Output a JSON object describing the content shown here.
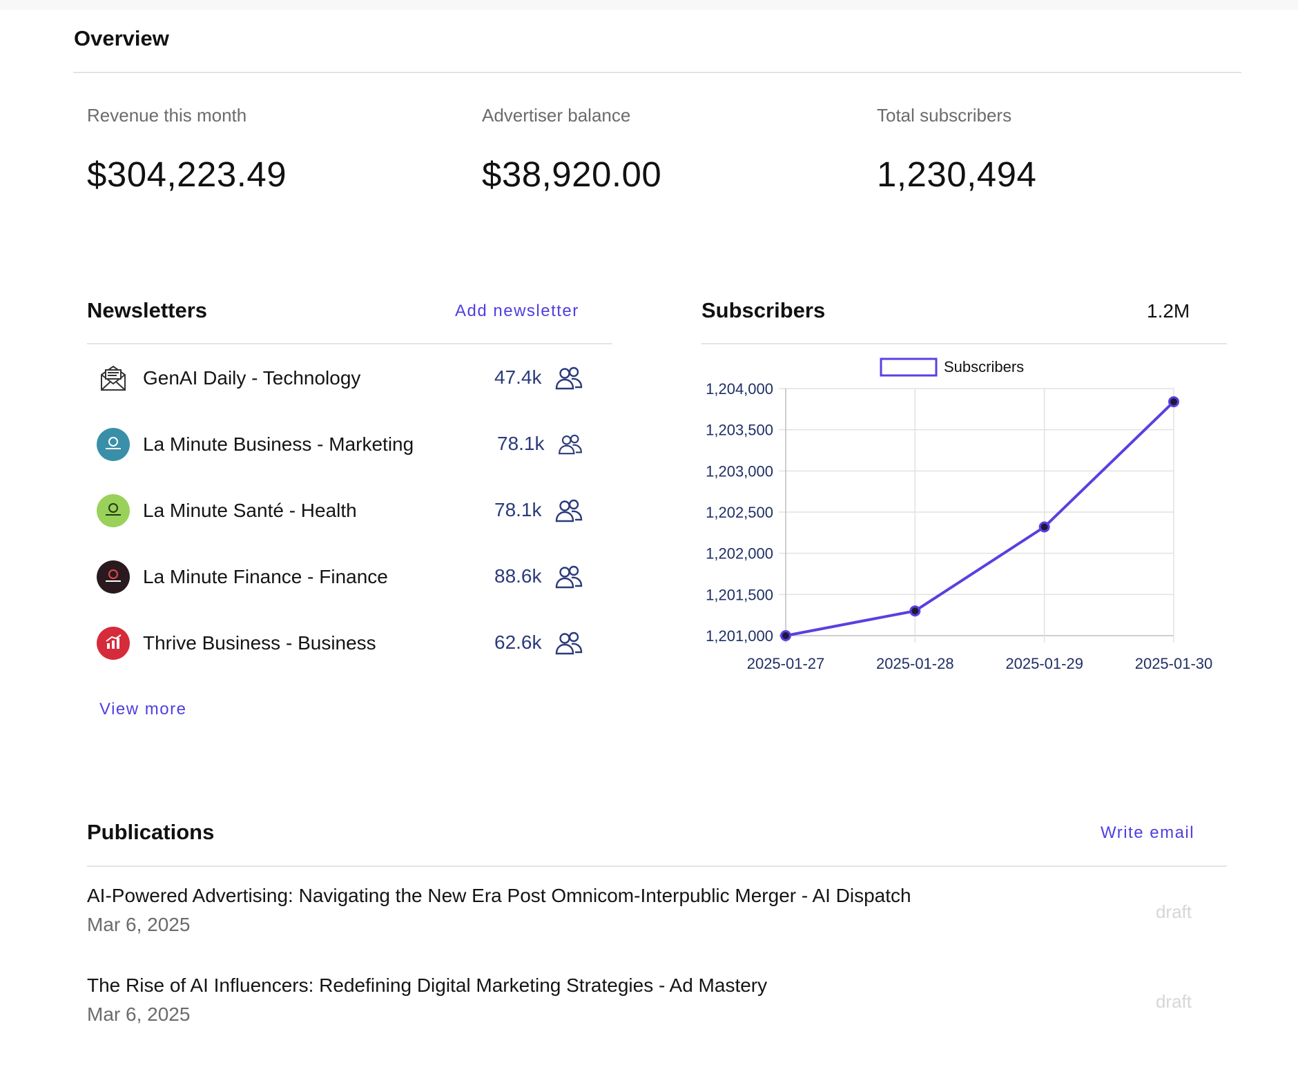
{
  "overview": {
    "title": "Overview",
    "stats": [
      {
        "label": "Revenue this month",
        "value": "$304,223.49"
      },
      {
        "label": "Advertiser balance",
        "value": "$38,920.00"
      },
      {
        "label": "Total subscribers",
        "value": "1,230,494"
      }
    ]
  },
  "newsletters": {
    "title": "Newsletters",
    "add_label": "Add newsletter",
    "view_more_label": "View more",
    "items": [
      {
        "name": "GenAI Daily - Technology",
        "count": "47.4k",
        "logo": "envelope-icon"
      },
      {
        "name": "La Minute Business - Marketing",
        "count": "78.1k",
        "logo": "la-minute-business-logo",
        "color": "#3a8fa8"
      },
      {
        "name": "La Minute Santé - Health",
        "count": "78.1k",
        "logo": "la-minute-sante-logo",
        "color": "#9ad15a"
      },
      {
        "name": "La Minute Finance - Finance",
        "count": "88.6k",
        "logo": "la-minute-finance-logo",
        "color": "#2a1a1f"
      },
      {
        "name": "Thrive Business - Business",
        "count": "62.6k",
        "logo": "thrive-business-logo",
        "color": "#d62b3a"
      }
    ]
  },
  "subscribers": {
    "title": "Subscribers",
    "total": "1.2M"
  },
  "chart_data": {
    "type": "line",
    "x": [
      "2025-01-27",
      "2025-01-28",
      "2025-01-29",
      "2025-01-30"
    ],
    "series": [
      {
        "name": "Subscribers",
        "values": [
          1201000,
          1201300,
          1202320,
          1203840
        ],
        "color": "#5b3fe0"
      }
    ],
    "ylim": [
      1201000,
      1204000
    ],
    "yticks": [
      "1,201,000",
      "1,201,500",
      "1,202,000",
      "1,202,500",
      "1,203,000",
      "1,203,500",
      "1,204,000"
    ],
    "grid": true,
    "legend": "top"
  },
  "publications": {
    "title": "Publications",
    "write_label": "Write email",
    "items": [
      {
        "title": "AI-Powered Advertising: Navigating the New Era Post Omnicom-Interpublic Merger - AI Dispatch",
        "date": "Mar 6, 2025",
        "status": "draft"
      },
      {
        "title": "The Rise of AI Influencers: Redefining Digital Marketing Strategies - Ad Mastery",
        "date": "Mar 6, 2025",
        "status": "draft"
      }
    ]
  }
}
